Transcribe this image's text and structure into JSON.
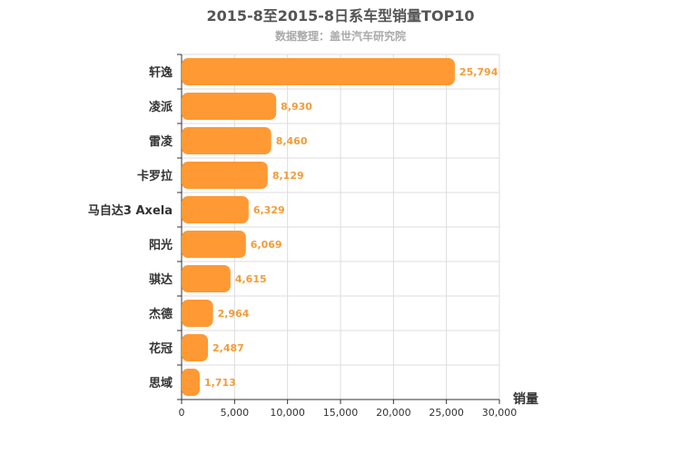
{
  "chart_data": {
    "type": "bar",
    "orientation": "horizontal",
    "title": "2015-8至2015-8日系车型销量TOP10",
    "subtitle": "数据整理：盖世汽车研究院",
    "categories": [
      "轩逸",
      "凌派",
      "雷凌",
      "卡罗拉",
      "马自达3 Axela",
      "阳光",
      "骐达",
      "杰德",
      "花冠",
      "思域"
    ],
    "values": [
      25794,
      8930,
      8460,
      8129,
      6329,
      6069,
      4615,
      2964,
      2487,
      1713
    ],
    "value_labels": [
      "25,794",
      "8,930",
      "8,460",
      "8,129",
      "6,329",
      "6,069",
      "4,615",
      "2,964",
      "2,487",
      "1,713"
    ],
    "xlabel": "销量",
    "xlim": [
      0,
      30000
    ],
    "x_ticks": [
      "0",
      "5,000",
      "10,000",
      "15,000",
      "20,000",
      "25,000",
      "30,000"
    ],
    "grid": true,
    "colors": {
      "bar": "#ff9933",
      "value_label": "#f39c38",
      "grid": "#dddddd",
      "axis": "#333333"
    }
  }
}
